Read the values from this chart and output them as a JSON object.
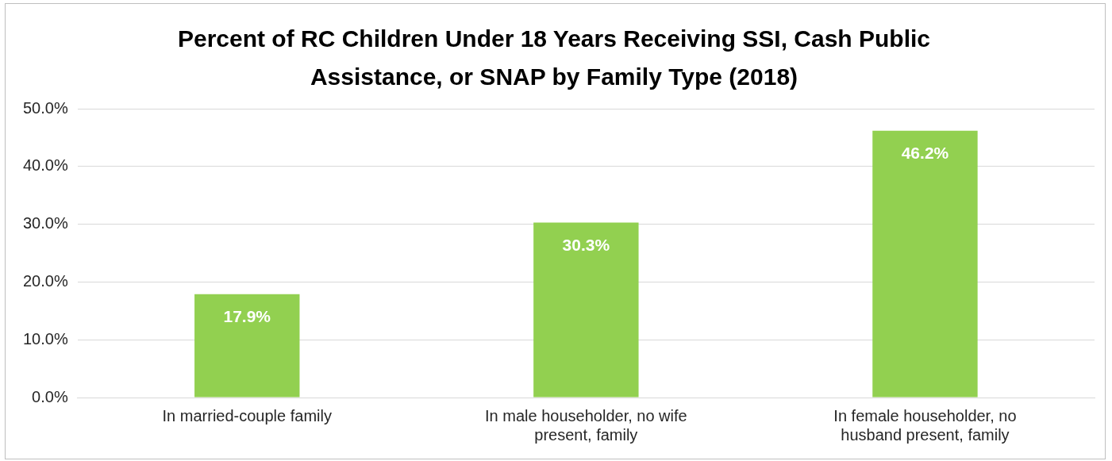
{
  "chart_data": {
    "type": "bar",
    "title": "Percent of RC Children Under 18 Years Receiving SSI, Cash Public Assistance, or SNAP by Family Type (2018)",
    "categories": [
      "In married-couple family",
      "In male householder, no wife present, family",
      "In female householder, no husband present, family"
    ],
    "values": [
      17.9,
      30.3,
      46.2
    ],
    "color": "#92d050",
    "value_labels": [
      "17.9%",
      "30.3%",
      "46.2%"
    ],
    "ylim": [
      0,
      50
    ],
    "yticks": [
      {
        "value": 0,
        "label": "0.0%"
      },
      {
        "value": 10,
        "label": "10.0%"
      },
      {
        "value": 20,
        "label": "20.0%"
      },
      {
        "value": 30,
        "label": "30.0%"
      },
      {
        "value": 40,
        "label": "40.0%"
      },
      {
        "value": 50,
        "label": "50.0%"
      }
    ],
    "grid": "y",
    "legend": false
  }
}
